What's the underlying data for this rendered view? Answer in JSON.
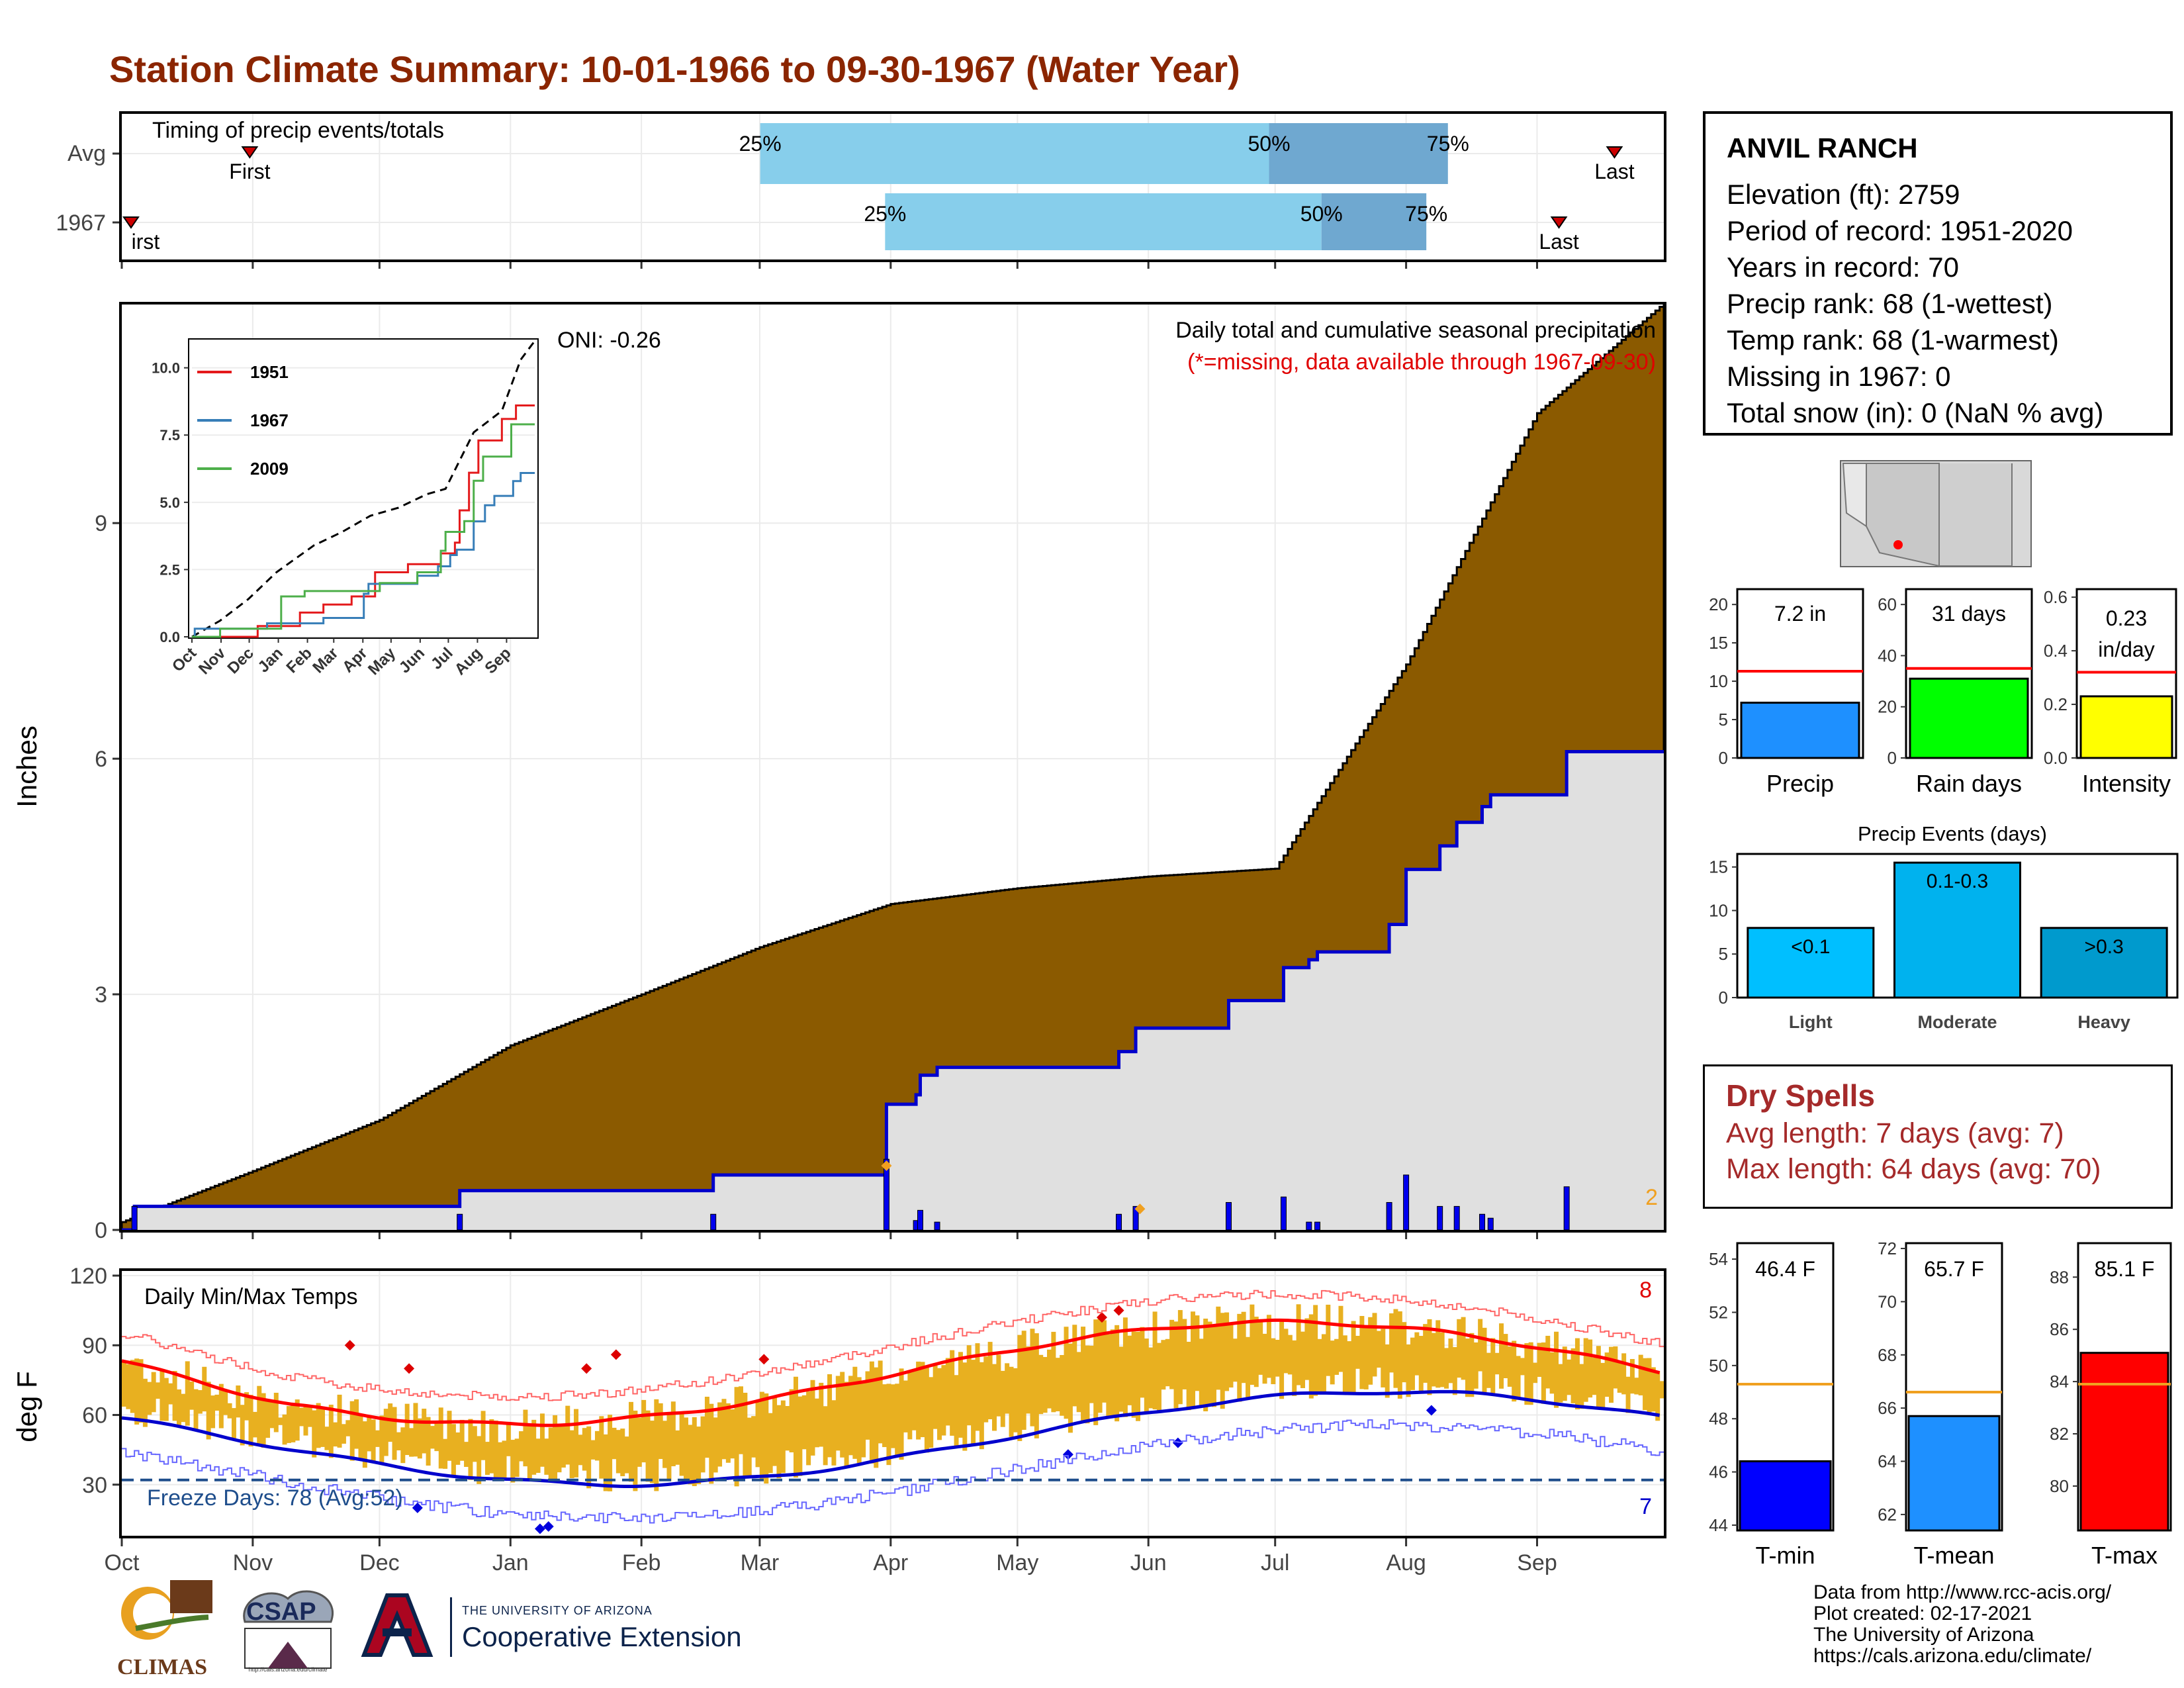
{
  "title": "Station Climate Summary: 10-01-1966 to 09-30-1967 (Water Year)",
  "timing": {
    "label": "Timing of precip events/totals",
    "rows": [
      "Avg",
      "1967"
    ],
    "first_label": "First",
    "first_label_clipped": "irst",
    "last_label": "Last",
    "p25": "25%",
    "p50": "50%",
    "p75": "75%",
    "avg": {
      "first": 0.083,
      "p25": 0.414,
      "p50": 0.744,
      "p75": 0.86,
      "last": 0.968
    },
    "y1967": {
      "first": 0.006,
      "p25": 0.495,
      "p50": 0.778,
      "p75": 0.846,
      "last": 0.932
    }
  },
  "precip_chart": {
    "title": "Daily total and cumulative seasonal precipitation",
    "missing_note": "(*=missing, data available through 1967-09-30)",
    "oni": "ONI: -0.26",
    "ylabel": "Inches",
    "yticks": [
      "0",
      "3",
      "6",
      "9"
    ],
    "xticks": [
      "Oct",
      "Nov",
      "Dec",
      "Jan",
      "Feb",
      "Mar",
      "Apr",
      "May",
      "Jun",
      "Jul",
      "Aug",
      "Sep"
    ],
    "corner_count": "2",
    "colors": {
      "avg_fill": "#8b5a00",
      "obs_fill": "#e0e0e0",
      "obs_line": "#0000cc",
      "bar": "#0000ee"
    }
  },
  "inset": {
    "yticks": [
      "0.0",
      "2.5",
      "5.0",
      "7.5",
      "10.0"
    ],
    "xticks": [
      "Oct",
      "Nov",
      "Dec",
      "Jan",
      "Feb",
      "Mar",
      "Apr",
      "May",
      "Jun",
      "Jul",
      "Aug",
      "Sep"
    ],
    "legend": [
      {
        "name": "1951",
        "color": "#e41a1c"
      },
      {
        "name": "1967",
        "color": "#377eb8"
      },
      {
        "name": "2009",
        "color": "#4daf4a"
      }
    ]
  },
  "temp_chart": {
    "title": "Daily Min/Max Temps",
    "ylabel": "deg F",
    "yticks": [
      "30",
      "60",
      "90",
      "120"
    ],
    "xticks": [
      "Oct",
      "Nov",
      "Dec",
      "Jan",
      "Feb",
      "Mar",
      "Apr",
      "May",
      "Jun",
      "Jul",
      "Aug",
      "Sep"
    ],
    "freeze": "Freeze Days: 78 (Avg:52)",
    "max_count": "8",
    "min_count": "7"
  },
  "station": {
    "name": "ANVIL RANCH",
    "lines": [
      "Elevation (ft): 2759",
      "Period of record: 1951-2020",
      "Years in record: 70",
      "Precip rank: 68 (1-wettest)",
      "Temp rank: 68 (1-warmest)",
      "Missing in 1967: 0",
      "Total snow (in): 0 (NaN % avg)"
    ]
  },
  "mini_bars": [
    {
      "label": "Precip",
      "value_text": "7.2 in",
      "value": 7.2,
      "avg": 11.3,
      "ymax": 22,
      "ticks": [
        "0",
        "5",
        "10",
        "15",
        "20"
      ],
      "color": "#1e90ff"
    },
    {
      "label": "Rain days",
      "value_text": "31 days",
      "value": 31,
      "avg": 35,
      "ymax": 66,
      "ticks": [
        "0",
        "20",
        "40",
        "60"
      ],
      "color": "#00ff00"
    },
    {
      "label": "Intensity",
      "value_text": "0.23 in/day",
      "value": 0.23,
      "avg": 0.32,
      "ymax": 0.63,
      "ticks": [
        "0.0",
        "0.2",
        "0.4",
        "0.6"
      ],
      "color": "#ffff00"
    }
  ],
  "events": {
    "title": "Precip Events (days)",
    "ticks": [
      "0",
      "5",
      "10",
      "15"
    ],
    "bars": [
      {
        "label": "Light",
        "value": 8,
        "inner": "<0.1",
        "color": "#00bfff"
      },
      {
        "label": "Moderate",
        "value": 15.5,
        "inner": "0.1-0.3",
        "color": "#00b2ee"
      },
      {
        "label": "Heavy",
        "value": 8,
        "inner": ">0.3",
        "color": "#009acd"
      }
    ]
  },
  "dry": {
    "title": "Dry Spells",
    "avg": "Avg length: 7 days (avg: 7)",
    "max": "Max length: 64 days (avg: 70)"
  },
  "temp_bars": [
    {
      "label": "T-min",
      "value_text": "46.4 F",
      "value": 46.4,
      "avg": 49.3,
      "ymin": 43.8,
      "ymax": 54.6,
      "ticks": [
        "44",
        "46",
        "48",
        "50",
        "52",
        "54"
      ],
      "color": "#0000ff"
    },
    {
      "label": "T-mean",
      "value_text": "65.7 F",
      "value": 65.7,
      "avg": 66.6,
      "ymin": 61.4,
      "ymax": 72.2,
      "ticks": [
        "62",
        "64",
        "66",
        "68",
        "70",
        "72"
      ],
      "color": "#1e90ff"
    },
    {
      "label": "T-max",
      "value_text": "85.1 F",
      "value": 85.1,
      "avg": 83.9,
      "ymin": 78.3,
      "ymax": 89.3,
      "ticks": [
        "80",
        "82",
        "84",
        "86",
        "88"
      ],
      "color": "#ff0000"
    }
  ],
  "credits": [
    "Data from http://www.rcc-acis.org/",
    "Plot created: 02-17-2021",
    "The University of Arizona",
    "https://cals.arizona.edu/climate/"
  ],
  "logos": {
    "climas": "CLIMAS",
    "csap": "CSAP",
    "ua_small": "THE UNIVERSITY OF ARIZONA",
    "ua_big": "Cooperative Extension"
  },
  "chart_data": {
    "type": "area",
    "title": "Daily total and cumulative seasonal precipitation",
    "ylabel": "Inches",
    "ylim": [
      0,
      11.8
    ],
    "x": [
      "Oct",
      "Nov",
      "Dec",
      "Jan",
      "Feb",
      "Mar",
      "Apr",
      "May",
      "Jun",
      "Jul",
      "Aug",
      "Sep"
    ],
    "series": [
      {
        "name": "Average cumulative",
        "values": [
          0.1,
          0.75,
          1.4,
          2.35,
          3.0,
          3.6,
          4.15,
          4.35,
          4.5,
          4.6,
          7.2,
          10.4
        ]
      },
      {
        "name": "1967 cumulative",
        "values": [
          0.3,
          0.3,
          0.5,
          0.9,
          1.0,
          1.0,
          1.9,
          2.0,
          2.2,
          2.6,
          5.3,
          6.5
        ]
      }
    ],
    "end_value_1967": 7.2
  }
}
